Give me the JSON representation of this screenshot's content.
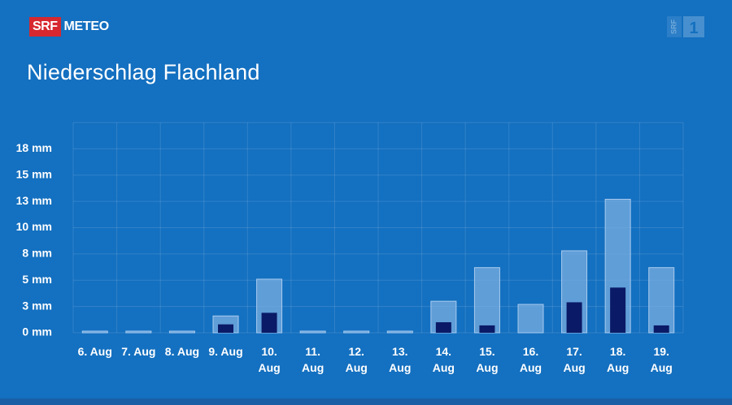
{
  "brand": {
    "srf_label": "SRF",
    "meteo_label": "METEO",
    "channel_label": "SRF",
    "channel_number": "1"
  },
  "colors": {
    "background": "#1470c0",
    "total_bar": "#7aaee0",
    "total_bar_border": "#a9cbee",
    "probable_bar": "#0a1a66",
    "srf_red": "#d7282f"
  },
  "chart_data": {
    "type": "bar",
    "title": "Niederschlag Flachland",
    "categories": [
      "6. Aug",
      "7. Aug",
      "8. Aug",
      "9. Aug",
      "10. Aug",
      "11. Aug",
      "12. Aug",
      "13. Aug",
      "14. Aug",
      "15. Aug",
      "16. Aug",
      "17. Aug",
      "18. Aug",
      "19. Aug"
    ],
    "category_lines": [
      [
        "6. Aug"
      ],
      [
        "7. Aug"
      ],
      [
        "8. Aug"
      ],
      [
        "9. Aug"
      ],
      [
        "10.",
        "Aug"
      ],
      [
        "11.",
        "Aug"
      ],
      [
        "12.",
        "Aug"
      ],
      [
        "13.",
        "Aug"
      ],
      [
        "14.",
        "Aug"
      ],
      [
        "15.",
        "Aug"
      ],
      [
        "16.",
        "Aug"
      ],
      [
        "17.",
        "Aug"
      ],
      [
        "18.",
        "Aug"
      ],
      [
        "19.",
        "Aug"
      ]
    ],
    "series": [
      {
        "values": [
          0,
          0,
          0,
          1.6,
          5.1,
          0,
          0,
          0,
          3.0,
          6.2,
          2.7,
          7.8,
          12.7,
          6.2
        ]
      },
      {
        "values": [
          0,
          0,
          0,
          0.8,
          1.9,
          0,
          0,
          0,
          1.0,
          0.7,
          0,
          2.9,
          4.3,
          0.7
        ]
      }
    ],
    "y_ticks": [
      0,
      2.5,
      5,
      7.5,
      10,
      12.5,
      15,
      17.5
    ],
    "y_tick_labels": [
      "0 mm",
      "3 mm",
      "5 mm",
      "8 mm",
      "10 mm",
      "13 mm",
      "15 mm",
      "18 mm"
    ],
    "ylim": [
      0,
      20
    ],
    "xlabel": "",
    "ylabel": "",
    "grid": true,
    "legend": "none"
  }
}
